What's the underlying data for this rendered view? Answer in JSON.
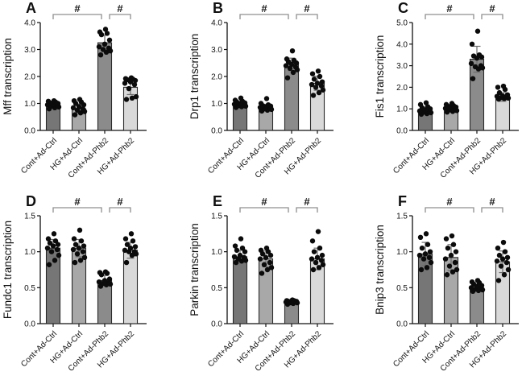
{
  "figure": {
    "background": "#ffffff",
    "bar_colors": [
      "#767676",
      "#a8a8a8",
      "#8b8b8b",
      "#d9d9d9"
    ],
    "bar_outline": "#2a2a2a",
    "dot_color": "#0b0b0b",
    "axis_color": "#111111",
    "error_bar_color": "#6e6e6e",
    "bracket_color": "#8f8f8f",
    "sig_symbol_color": "#1a1a1a",
    "categories": [
      "Cont+Ad-Ctrl",
      "HG+Ad-Ctrl",
      "Cont+Ad-Phb2",
      "HG+Ad-Phb2"
    ]
  },
  "chart_data": [
    {
      "panel": "A",
      "type": "bar",
      "ylabel": "Mff transcription",
      "categories": [
        "Cont+Ad-Ctrl",
        "HG+Ad-Ctrl",
        "Cont+Ad-Phb2",
        "HG+Ad-Phb2"
      ],
      "ylim": [
        0,
        4
      ],
      "yticks": [
        0,
        1,
        2,
        3,
        4
      ],
      "ytick_labels": [
        "0.0",
        "1.0",
        "2.0",
        "3.0",
        "4.0"
      ],
      "means": [
        0.95,
        0.8,
        3.25,
        1.6
      ],
      "sd": [
        0.1,
        0.18,
        0.28,
        0.27
      ],
      "points": [
        [
          0.8,
          0.84,
          0.87,
          0.9,
          0.92,
          0.95,
          0.97,
          1.0,
          1.02,
          1.05,
          1.08,
          1.1
        ],
        [
          0.58,
          0.65,
          0.7,
          0.75,
          0.8,
          0.84,
          0.88,
          0.95,
          1.0,
          1.05,
          1.1,
          1.15
        ],
        [
          2.8,
          2.9,
          2.95,
          3.0,
          3.05,
          3.1,
          3.2,
          3.35,
          3.55,
          3.6,
          3.65,
          3.75
        ],
        [
          1.15,
          1.2,
          1.25,
          1.55,
          1.7,
          1.75,
          1.8,
          1.85,
          1.88,
          1.9,
          1.92,
          1.95
        ]
      ],
      "comparisons": [
        {
          "groups": [
            0,
            2
          ],
          "label": "#"
        },
        {
          "groups": [
            2,
            3
          ],
          "label": "#"
        }
      ]
    },
    {
      "panel": "B",
      "type": "bar",
      "ylabel": "Drp1 transcription",
      "categories": [
        "Cont+Ad-Ctrl",
        "HG+Ad-Ctrl",
        "Cont+Ad-Phb2",
        "HG+Ad-Phb2"
      ],
      "ylim": [
        0,
        4
      ],
      "yticks": [
        0,
        1,
        2,
        3,
        4
      ],
      "ytick_labels": [
        "0.0",
        "1.0",
        "2.0",
        "3.0",
        "4.0"
      ],
      "means": [
        0.97,
        0.85,
        2.45,
        1.75
      ],
      "sd": [
        0.1,
        0.12,
        0.23,
        0.26
      ],
      "points": [
        [
          0.85,
          0.88,
          0.9,
          0.92,
          0.95,
          0.97,
          1.0,
          1.02,
          1.05,
          1.08,
          1.12,
          1.2
        ],
        [
          0.72,
          0.75,
          0.78,
          0.8,
          0.82,
          0.85,
          0.87,
          0.9,
          0.92,
          0.95,
          1.0,
          1.18
        ],
        [
          1.95,
          2.15,
          2.25,
          2.3,
          2.35,
          2.4,
          2.45,
          2.5,
          2.55,
          2.6,
          2.65,
          2.95
        ],
        [
          1.3,
          1.4,
          1.5,
          1.6,
          1.65,
          1.7,
          1.75,
          1.8,
          1.9,
          2.0,
          2.1,
          2.2
        ]
      ],
      "comparisons": [
        {
          "groups": [
            0,
            2
          ],
          "label": "#"
        },
        {
          "groups": [
            2,
            3
          ],
          "label": "#"
        }
      ]
    },
    {
      "panel": "C",
      "type": "bar",
      "ylabel": "Fis1 transcription",
      "categories": [
        "Cont+Ad-Ctrl",
        "HG+Ad-Ctrl",
        "Cont+Ad-Phb2",
        "HG+Ad-Phb2"
      ],
      "ylim": [
        0,
        5
      ],
      "yticks": [
        0,
        1,
        2,
        3,
        4,
        5
      ],
      "ytick_labels": [
        "0.0",
        "1.0",
        "2.0",
        "3.0",
        "4.0",
        "5.0"
      ],
      "means": [
        0.92,
        1.0,
        3.3,
        1.55
      ],
      "sd": [
        0.16,
        0.12,
        0.6,
        0.2
      ],
      "points": [
        [
          0.75,
          0.78,
          0.82,
          0.85,
          0.88,
          0.9,
          0.95,
          1.0,
          1.05,
          1.1,
          1.2,
          1.28
        ],
        [
          0.85,
          0.88,
          0.92,
          0.95,
          1.0,
          1.02,
          1.05,
          1.08,
          1.12,
          1.15,
          1.2,
          1.25
        ],
        [
          2.4,
          2.85,
          2.9,
          2.95,
          3.0,
          3.1,
          3.35,
          3.4,
          3.45,
          3.5,
          4.0,
          4.6
        ],
        [
          1.45,
          1.48,
          1.5,
          1.52,
          1.55,
          1.58,
          1.6,
          1.65,
          1.75,
          1.9,
          2.0,
          2.05
        ]
      ],
      "comparisons": [
        {
          "groups": [
            0,
            2
          ],
          "label": "#"
        },
        {
          "groups": [
            2,
            3
          ],
          "label": "#"
        }
      ]
    },
    {
      "panel": "D",
      "type": "bar",
      "ylabel": "Fundc1 transcription",
      "categories": [
        "Cont+Ad-Ctrl",
        "HG+Ad-Ctrl",
        "Cont+Ad-Phb2",
        "HG+Ad-Phb2"
      ],
      "ylim": [
        0,
        1.5
      ],
      "yticks": [
        0,
        0.5,
        1,
        1.5
      ],
      "ytick_labels": [
        "0.0",
        "0.5",
        "1.0",
        "1.5"
      ],
      "means": [
        1.05,
        1.05,
        0.6,
        1.02
      ],
      "sd": [
        0.12,
        0.12,
        0.07,
        0.11
      ],
      "points": [
        [
          0.82,
          0.88,
          0.95,
          1.0,
          1.03,
          1.05,
          1.08,
          1.1,
          1.12,
          1.15,
          1.18,
          1.25
        ],
        [
          0.85,
          0.88,
          0.92,
          0.97,
          1.0,
          1.03,
          1.05,
          1.08,
          1.1,
          1.15,
          1.18,
          1.3
        ],
        [
          0.52,
          0.54,
          0.55,
          0.56,
          0.57,
          0.58,
          0.6,
          0.62,
          0.68,
          0.7,
          0.71,
          0.72
        ],
        [
          0.85,
          0.95,
          0.97,
          1.0,
          1.0,
          1.02,
          1.05,
          1.07,
          1.1,
          1.15,
          1.18,
          1.25
        ]
      ],
      "comparisons": [
        {
          "groups": [
            0,
            2
          ],
          "label": "#"
        },
        {
          "groups": [
            2,
            3
          ],
          "label": "#"
        }
      ]
    },
    {
      "panel": "E",
      "type": "bar",
      "ylabel": "Parkin transcription",
      "categories": [
        "Cont+Ad-Ctrl",
        "HG+Ad-Ctrl",
        "Cont+Ad-Phb2",
        "HG+Ad-Phb2"
      ],
      "ylim": [
        0,
        1.5
      ],
      "yticks": [
        0,
        0.5,
        1,
        1.5
      ],
      "ytick_labels": [
        "0.0",
        "0.5",
        "1.0",
        "1.5"
      ],
      "means": [
        0.93,
        0.9,
        0.3,
        0.9
      ],
      "sd": [
        0.09,
        0.11,
        0.02,
        0.15
      ],
      "points": [
        [
          0.85,
          0.87,
          0.88,
          0.9,
          0.92,
          0.93,
          0.95,
          1.0,
          1.02,
          1.05,
          1.08,
          1.18
        ],
        [
          0.7,
          0.75,
          0.78,
          0.82,
          0.85,
          0.9,
          0.92,
          0.95,
          0.97,
          1.0,
          1.02,
          1.05
        ],
        [
          0.27,
          0.28,
          0.29,
          0.29,
          0.3,
          0.3,
          0.3,
          0.31,
          0.31,
          0.32,
          0.32,
          0.33
        ],
        [
          0.75,
          0.78,
          0.82,
          0.85,
          0.88,
          0.9,
          0.92,
          0.95,
          1.0,
          1.05,
          1.15,
          1.28
        ]
      ],
      "comparisons": [
        {
          "groups": [
            0,
            2
          ],
          "label": "#"
        },
        {
          "groups": [
            2,
            3
          ],
          "label": "#"
        }
      ]
    },
    {
      "panel": "F",
      "type": "bar",
      "ylabel": "Bnip3 transcription",
      "categories": [
        "Cont+Ad-Ctrl",
        "HG+Ad-Ctrl",
        "Cont+Ad-Phb2",
        "HG+Ad-Phb2"
      ],
      "ylim": [
        0,
        1.5
      ],
      "yticks": [
        0,
        0.5,
        1,
        1.5
      ],
      "ytick_labels": [
        "0.0",
        "0.5",
        "1.0",
        "1.5"
      ],
      "means": [
        0.97,
        0.92,
        0.5,
        0.86
      ],
      "sd": [
        0.16,
        0.18,
        0.05,
        0.15
      ],
      "points": [
        [
          0.75,
          0.78,
          0.85,
          0.9,
          0.92,
          0.95,
          0.97,
          1.0,
          1.05,
          1.1,
          1.2,
          1.25
        ],
        [
          0.68,
          0.72,
          0.75,
          0.8,
          0.85,
          0.9,
          0.95,
          1.0,
          1.05,
          1.1,
          1.18,
          1.22
        ],
        [
          0.45,
          0.46,
          0.47,
          0.48,
          0.5,
          0.5,
          0.52,
          0.53,
          0.55,
          0.57,
          0.58,
          0.6
        ],
        [
          0.6,
          0.68,
          0.75,
          0.8,
          0.85,
          0.87,
          0.9,
          0.92,
          0.95,
          1.0,
          1.05,
          1.13
        ]
      ],
      "comparisons": [
        {
          "groups": [
            0,
            2
          ],
          "label": "#"
        },
        {
          "groups": [
            2,
            3
          ],
          "label": "#"
        }
      ]
    }
  ]
}
